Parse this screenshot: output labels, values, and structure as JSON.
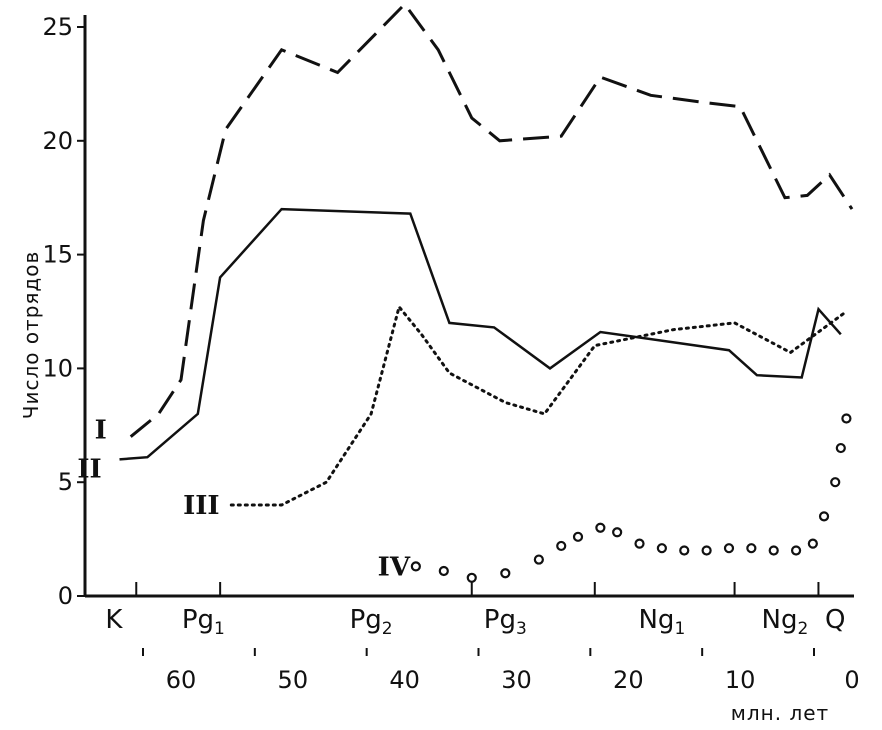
{
  "chart_data": {
    "type": "line",
    "title": "",
    "ylabel": "Число отрядов",
    "xlabel": "млн. лет",
    "xlim": [
      68,
      0
    ],
    "ylim": [
      0,
      25
    ],
    "x_ticks": [
      60,
      50,
      40,
      30,
      20,
      10,
      0
    ],
    "y_ticks": [
      0,
      5,
      10,
      15,
      20,
      25
    ],
    "periods": [
      {
        "label": "K",
        "x": 66
      },
      {
        "label": "Pg1",
        "x": 58
      },
      {
        "label": "Pg2",
        "x": 43
      },
      {
        "label": "Pg3",
        "x": 31
      },
      {
        "label": "Ng1",
        "x": 17
      },
      {
        "label": "Ng2",
        "x": 6
      },
      {
        "label": "Q",
        "x": 1.5
      }
    ],
    "series": [
      {
        "name": "I",
        "style": "dashed",
        "points": [
          [
            64.5,
            7
          ],
          [
            62,
            8
          ],
          [
            60,
            9.5
          ],
          [
            58,
            16.5
          ],
          [
            56,
            20.5
          ],
          [
            51,
            24
          ],
          [
            46,
            23
          ],
          [
            40,
            26
          ],
          [
            37,
            24
          ],
          [
            34,
            21
          ],
          [
            31.5,
            20
          ],
          [
            26,
            20.2
          ],
          [
            22.5,
            22.8
          ],
          [
            18,
            22
          ],
          [
            13.5,
            21.7
          ],
          [
            10,
            21.5
          ],
          [
            6,
            17.5
          ],
          [
            4,
            17.6
          ],
          [
            2,
            18.5
          ],
          [
            0,
            17
          ]
        ]
      },
      {
        "name": "II",
        "style": "solid",
        "points": [
          [
            65.5,
            6
          ],
          [
            63,
            6.1
          ],
          [
            58.5,
            8
          ],
          [
            56.5,
            14
          ],
          [
            51,
            17
          ],
          [
            39.5,
            16.8
          ],
          [
            36,
            12
          ],
          [
            32,
            11.8
          ],
          [
            27,
            10
          ],
          [
            22.5,
            11.6
          ],
          [
            11,
            10.8
          ],
          [
            8.5,
            9.7
          ],
          [
            4.5,
            9.6
          ],
          [
            3,
            12.6
          ],
          [
            1,
            11.5
          ]
        ]
      },
      {
        "name": "III",
        "style": "dotted",
        "points": [
          [
            55.5,
            4
          ],
          [
            51,
            4
          ],
          [
            47,
            5
          ],
          [
            43,
            8
          ],
          [
            40.5,
            12.7
          ],
          [
            38.5,
            11.5
          ],
          [
            36,
            9.8
          ],
          [
            31,
            8.5
          ],
          [
            27.5,
            8
          ],
          [
            23,
            11
          ],
          [
            16,
            11.7
          ],
          [
            10.5,
            12
          ],
          [
            5.5,
            10.7
          ],
          [
            0.5,
            12.5
          ]
        ]
      },
      {
        "name": "IV",
        "style": "circles",
        "points": [
          [
            39,
            1.3
          ],
          [
            36.5,
            1.1
          ],
          [
            34,
            0.8
          ],
          [
            31,
            1
          ],
          [
            28,
            1.6
          ],
          [
            26,
            2.2
          ],
          [
            24.5,
            2.6
          ],
          [
            22.5,
            3
          ],
          [
            21,
            2.8
          ],
          [
            19,
            2.3
          ],
          [
            17,
            2.1
          ],
          [
            15,
            2
          ],
          [
            13,
            2
          ],
          [
            11,
            2.1
          ],
          [
            9,
            2.1
          ],
          [
            7,
            2
          ],
          [
            5,
            2
          ],
          [
            3.5,
            2.3
          ],
          [
            2.5,
            3.5
          ],
          [
            1.5,
            5
          ],
          [
            1,
            6.5
          ],
          [
            0.5,
            7.8
          ]
        ]
      }
    ]
  }
}
